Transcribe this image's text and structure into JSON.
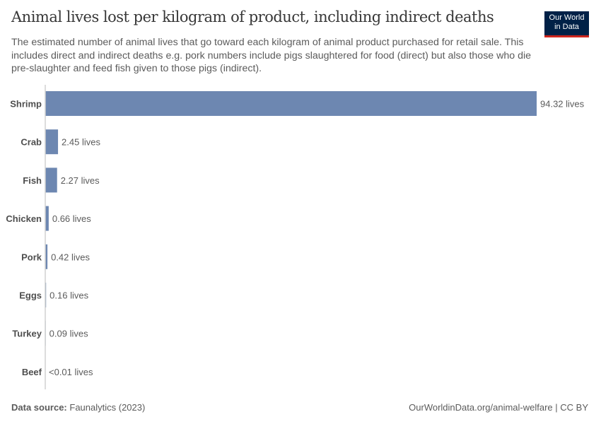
{
  "header": {
    "title": "Animal lives lost per kilogram of product, including indirect deaths",
    "subtitle": "The estimated number of animal lives that go toward each kilogram of animal product purchased for retail sale. This includes direct and indirect deaths e.g. pork numbers include pigs slaughtered for food (direct) but also those who die pre-slaughter and feed fish given to those pigs (indirect).",
    "logo_line1": "Our World",
    "logo_line2": "in Data"
  },
  "chart_data": {
    "type": "bar",
    "orientation": "horizontal",
    "categories": [
      "Shrimp",
      "Crab",
      "Fish",
      "Chicken",
      "Pork",
      "Eggs",
      "Turkey",
      "Beef"
    ],
    "values": [
      94.32,
      2.45,
      2.27,
      0.66,
      0.42,
      0.16,
      0.09,
      0
    ],
    "data_labels": [
      "94.32 lives",
      "2.45 lives",
      "2.27 lives",
      "0.66 lives",
      "0.42 lives",
      "0.16 lives",
      "0.09 lives",
      "<0.01 lives"
    ],
    "xlim": [
      0,
      94.32
    ],
    "grid": false,
    "bar_color": "#6d87b1"
  },
  "footer": {
    "source_label": "Data source:",
    "source": "Faunalytics (2023)",
    "url_license": "OurWorldinData.org/animal-welfare | CC BY"
  }
}
